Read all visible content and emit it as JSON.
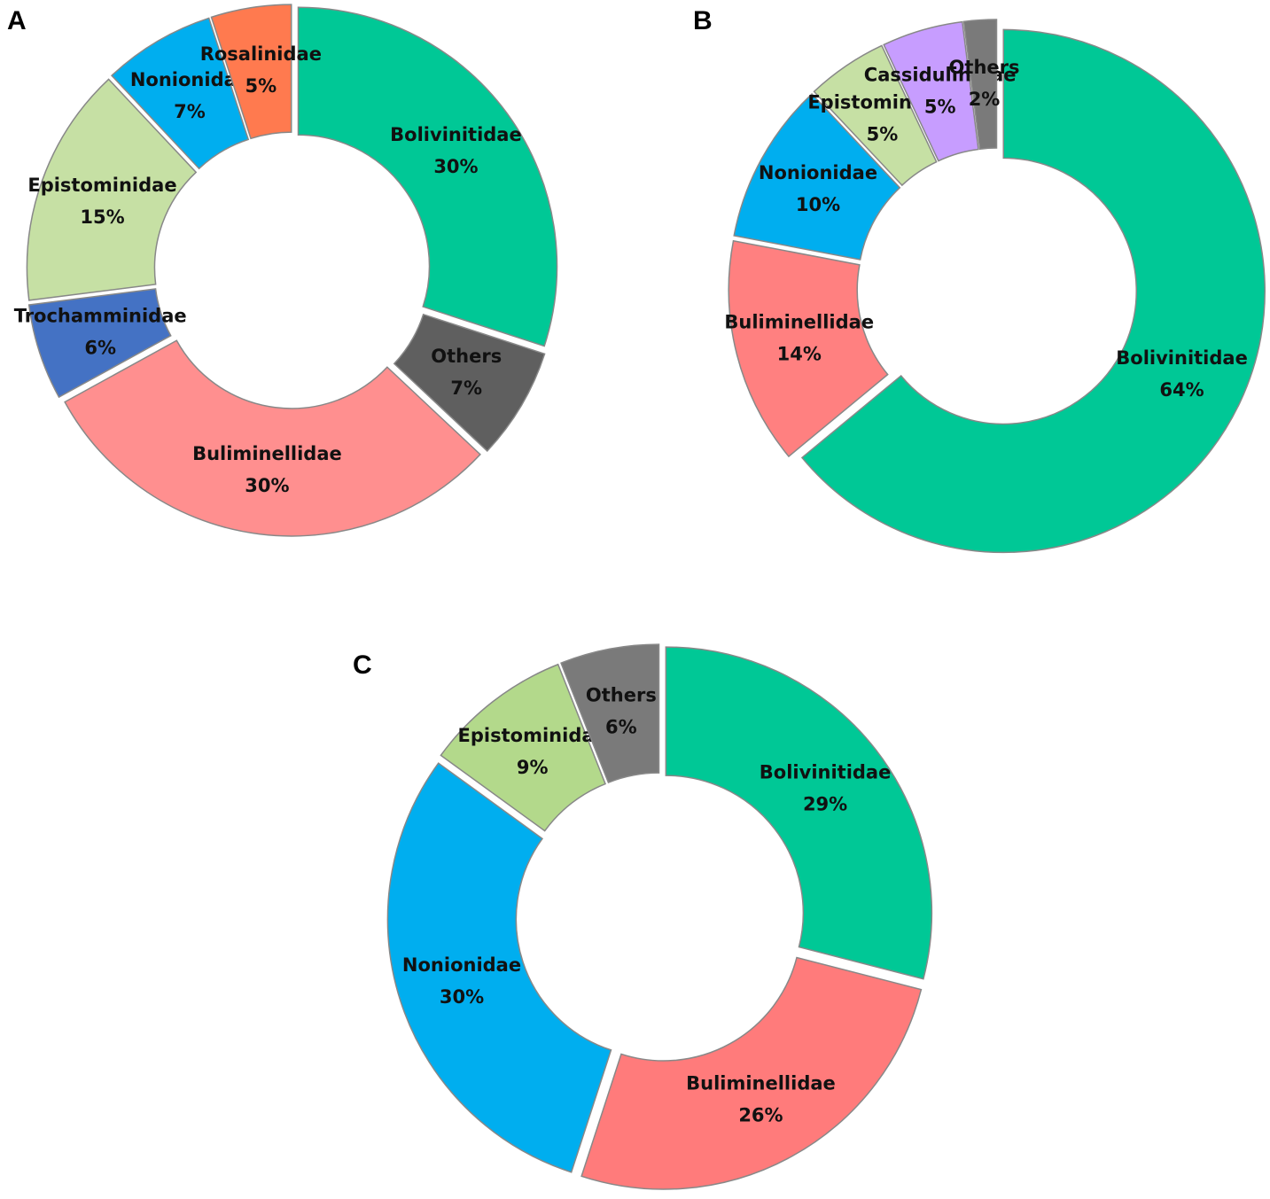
{
  "chart_data": [
    {
      "type": "pie",
      "title": "A",
      "categories": [
        "Bolivinitidae",
        "Others",
        "Buliminellidae",
        "Trochamminidae",
        "Epistominidae",
        "Nonionidae",
        "Rosalinidae"
      ],
      "values": [
        30,
        7,
        30,
        6,
        15,
        7,
        5
      ],
      "value_labels": [
        "30%",
        "7%",
        "30%",
        "6%",
        "15%",
        "7%",
        "5%"
      ],
      "colors": [
        "#00c896",
        "#5f5f5f",
        "#ff8f8f",
        "#4472c4",
        "#c6e0a4",
        "#00aeef",
        "#ff7a4f"
      ]
    },
    {
      "type": "pie",
      "title": "B",
      "categories": [
        "Bolivinitidae",
        "Buliminellidae",
        "Nonionidae",
        "Epistominidae",
        "Cassidulinidae",
        "Others"
      ],
      "values": [
        64,
        14,
        10,
        5,
        5,
        2
      ],
      "value_labels": [
        "64%",
        "14%",
        "10%",
        "5%",
        "5%",
        "2%"
      ],
      "colors": [
        "#00c896",
        "#ff8080",
        "#00aeef",
        "#c6e0a4",
        "#c79dff",
        "#7a7a7a"
      ]
    },
    {
      "type": "pie",
      "title": "C",
      "categories": [
        "Bolivinitidae",
        "Buliminellidae",
        "Nonionidae",
        "Epistominidae",
        "Others"
      ],
      "values": [
        29,
        26,
        30,
        9,
        6
      ],
      "value_labels": [
        "29%",
        "26%",
        "30%",
        "9%",
        "6%"
      ],
      "colors": [
        "#00c896",
        "#ff7b7b",
        "#00aeef",
        "#b3d98b",
        "#7a7a7a"
      ]
    }
  ]
}
